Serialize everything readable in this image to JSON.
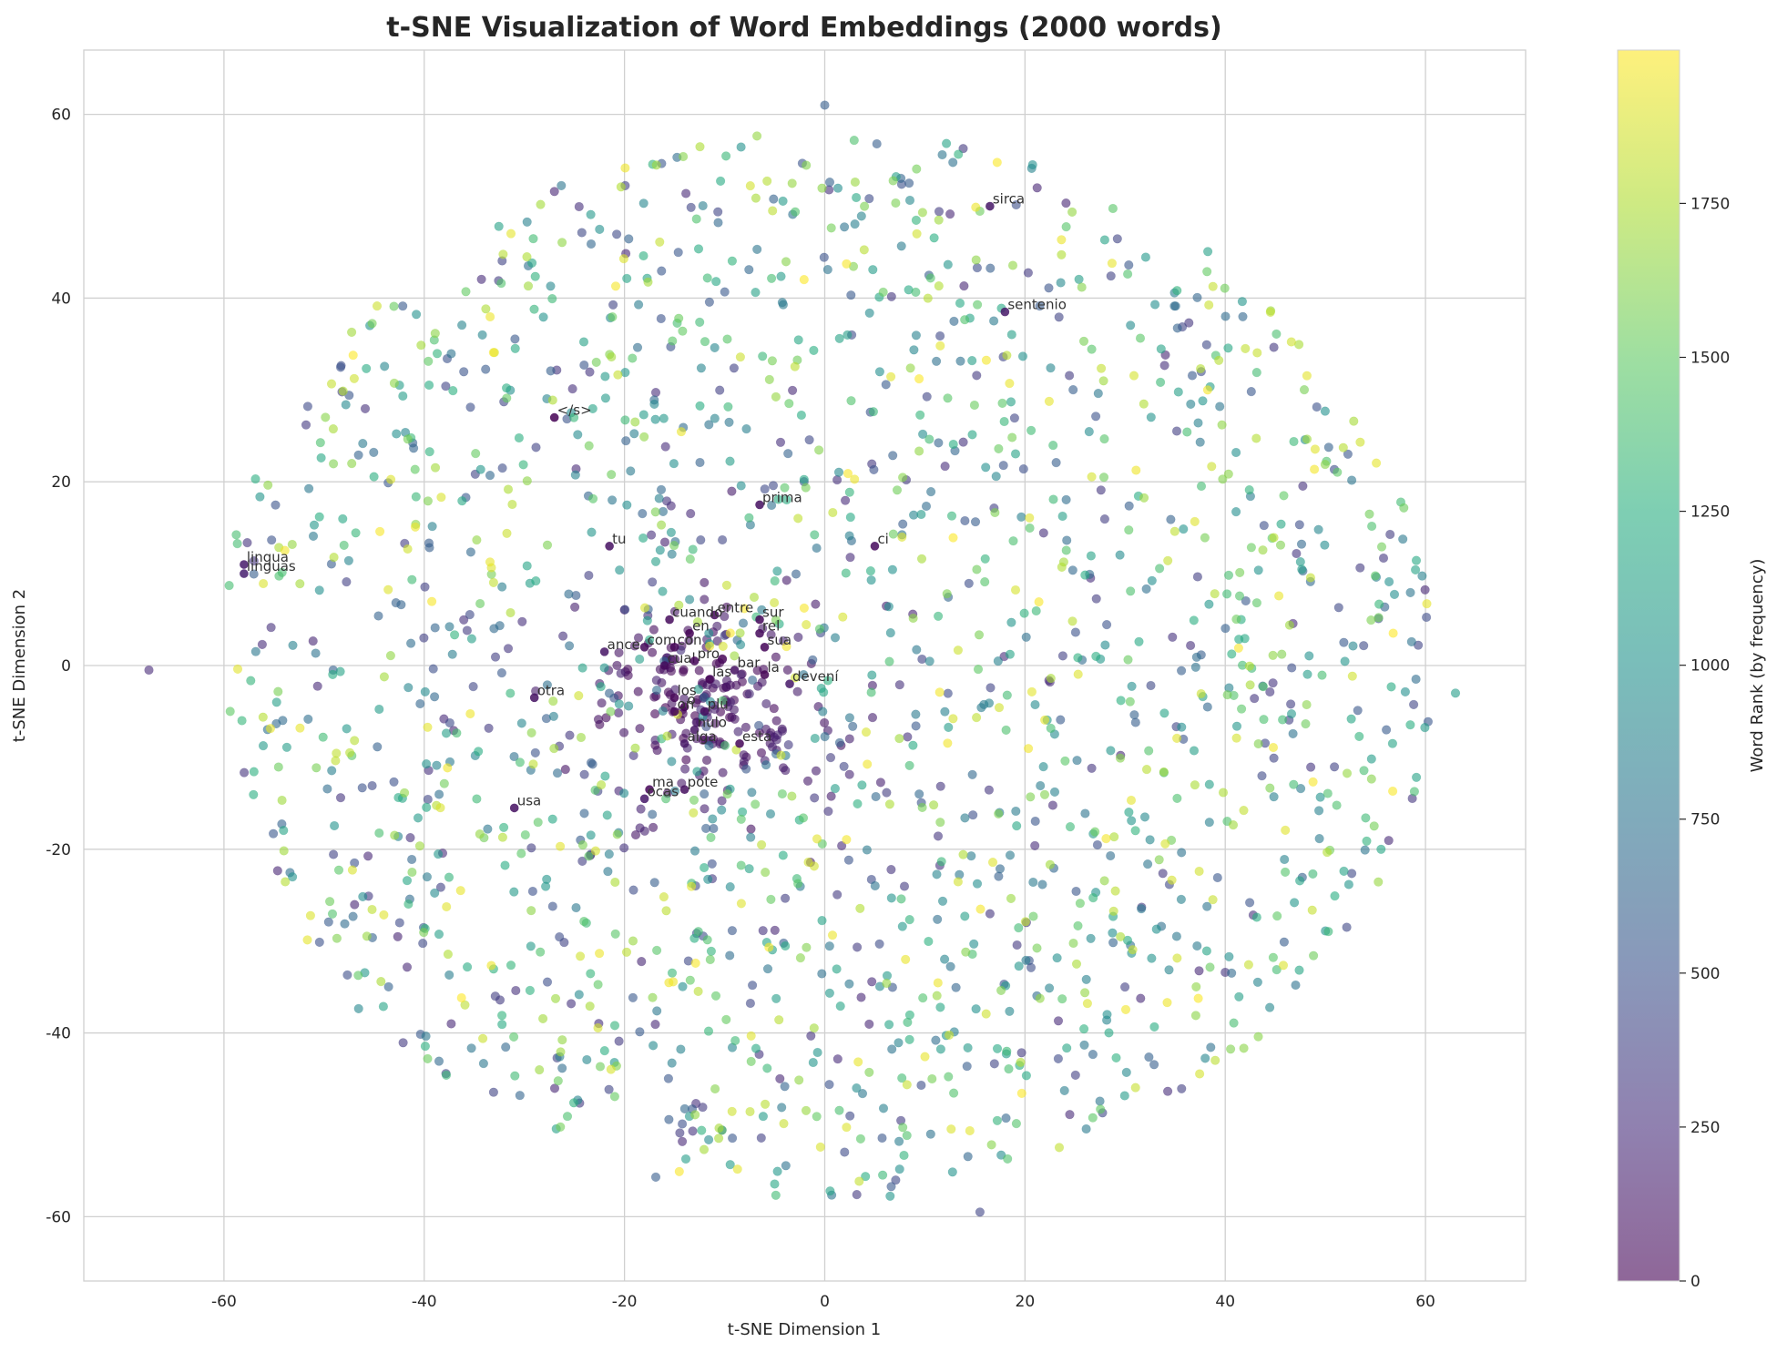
{
  "chart_data": {
    "type": "scatter",
    "title": "t-SNE Visualization of Word Embeddings (2000 words)",
    "xlabel": "t-SNE Dimension 1",
    "ylabel": "t-SNE Dimension 2",
    "xlim": [
      -74,
      70
    ],
    "ylim": [
      -67,
      67
    ],
    "xticks": [
      -60,
      -40,
      -20,
      0,
      20,
      40,
      60
    ],
    "yticks": [
      -60,
      -40,
      -20,
      0,
      20,
      40,
      60
    ],
    "grid": true,
    "colormap": "viridis",
    "point_alpha": 0.6,
    "colorbar": {
      "label": "Word Rank (by frequency)",
      "range": [
        0,
        1999
      ],
      "ticks": [
        0,
        250,
        500,
        750,
        1000,
        1250,
        1500,
        1750
      ]
    },
    "n_points": 2000,
    "labeled_points": [
      {
        "word": "sirca",
        "x": 16.5,
        "y": 50.0,
        "rank": 120
      },
      {
        "word": "sentenio",
        "x": 18.0,
        "y": 38.5,
        "rank": 140
      },
      {
        "word": "</s>",
        "x": -27.0,
        "y": 27.0,
        "rank": 2
      },
      {
        "word": "prima",
        "x": -6.5,
        "y": 17.5,
        "rank": 80
      },
      {
        "word": "ci",
        "x": 5.0,
        "y": 13.0,
        "rank": 60
      },
      {
        "word": "lingua",
        "x": -58.0,
        "y": 11.0,
        "rank": 150
      },
      {
        "word": "linguas",
        "x": -58.0,
        "y": 10.0,
        "rank": 170
      },
      {
        "word": "tu",
        "x": -21.5,
        "y": 13.0,
        "rank": 90
      },
      {
        "word": "entre",
        "x": -11.0,
        "y": 5.5,
        "rank": 40
      },
      {
        "word": "cuando",
        "x": -15.5,
        "y": 5.0,
        "rank": 55
      },
      {
        "word": "sur",
        "x": -6.5,
        "y": 5.0,
        "rank": 30
      },
      {
        "word": "en",
        "x": -13.5,
        "y": 3.5,
        "rank": 5
      },
      {
        "word": "rel",
        "x": -6.5,
        "y": 3.5,
        "rank": 45
      },
      {
        "word": "sua",
        "x": -6.0,
        "y": 2.0,
        "rank": 25
      },
      {
        "word": "ance",
        "x": -22.0,
        "y": 1.5,
        "rank": 110
      },
      {
        "word": "com",
        "x": -18.0,
        "y": 2.0,
        "rank": 35
      },
      {
        "word": "con",
        "x": -15.0,
        "y": 2.0,
        "rank": 15
      },
      {
        "word": "cual",
        "x": -16.0,
        "y": 0.0,
        "rank": 50
      },
      {
        "word": "pro",
        "x": -13.0,
        "y": 0.5,
        "rank": 20
      },
      {
        "word": "bar",
        "x": -9.0,
        "y": -0.5,
        "rank": 95
      },
      {
        "word": "la",
        "x": -6.0,
        "y": -1.0,
        "rank": 3
      },
      {
        "word": "devení",
        "x": -3.5,
        "y": -2.0,
        "rank": 130
      },
      {
        "word": "las",
        "x": -11.5,
        "y": -1.5,
        "rank": 12
      },
      {
        "word": "otra",
        "x": -29.0,
        "y": -3.5,
        "rank": 100
      },
      {
        "word": "los",
        "x": -15.0,
        "y": -3.5,
        "rank": 10
      },
      {
        "word": "o",
        "x": -14.0,
        "y": -4.5,
        "rank": 8
      },
      {
        "word": "on",
        "x": -15.0,
        "y": -5.0,
        "rank": 22
      },
      {
        "word": "plu",
        "x": -12.0,
        "y": -5.0,
        "rank": 65
      },
      {
        "word": "nulo",
        "x": -13.0,
        "y": -7.0,
        "rank": 115
      },
      {
        "word": "alga",
        "x": -14.0,
        "y": -8.5,
        "rank": 125
      },
      {
        "word": "esta",
        "x": -8.5,
        "y": -8.5,
        "rank": 28
      },
      {
        "word": "ma",
        "x": -17.5,
        "y": -13.5,
        "rank": 18
      },
      {
        "word": "pote",
        "x": -14.0,
        "y": -13.5,
        "rank": 75
      },
      {
        "word": "ocas",
        "x": -18.0,
        "y": -14.5,
        "rank": 135
      },
      {
        "word": "usa",
        "x": -31.0,
        "y": -15.5,
        "rank": 85
      }
    ]
  }
}
